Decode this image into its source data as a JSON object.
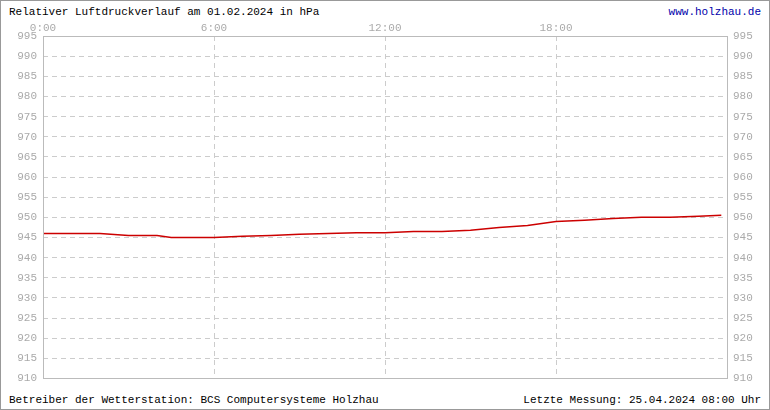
{
  "chart_data": {
    "type": "line",
    "title": "Relativer Luftdruckverlauf am 01.02.2024 in hPa",
    "link": "www.holzhau.de",
    "footer_left": "Betreiber der Wetterstation: BCS Computersysteme Holzhau",
    "footer_right": "Letzte Messung: 25.04.2024 08:00 Uhr",
    "x": [
      0,
      1,
      2,
      3,
      4,
      4.5,
      5,
      6,
      7,
      8,
      9,
      10,
      11,
      12,
      13,
      14,
      15,
      16,
      17,
      18,
      19,
      20,
      21,
      22,
      23,
      23.8
    ],
    "values": [
      946,
      946,
      946,
      945.5,
      945.5,
      945,
      945,
      945,
      945.3,
      945.5,
      945.8,
      946,
      946.2,
      946.2,
      946.5,
      946.5,
      946.8,
      947.5,
      948,
      949,
      949.3,
      949.7,
      950,
      950,
      950.3,
      950.5
    ],
    "color": "#cc0000",
    "xlim": [
      0,
      24
    ],
    "xticks": [
      {
        "value": 0,
        "label": "0:00"
      },
      {
        "value": 6,
        "label": "6:00"
      },
      {
        "value": 12,
        "label": "12:00"
      },
      {
        "value": 18,
        "label": "18:00"
      }
    ],
    "ylim": [
      910,
      995
    ],
    "yticks": [
      910,
      915,
      920,
      925,
      930,
      935,
      940,
      945,
      950,
      955,
      960,
      965,
      970,
      975,
      980,
      985,
      990,
      995
    ],
    "grid": true
  }
}
